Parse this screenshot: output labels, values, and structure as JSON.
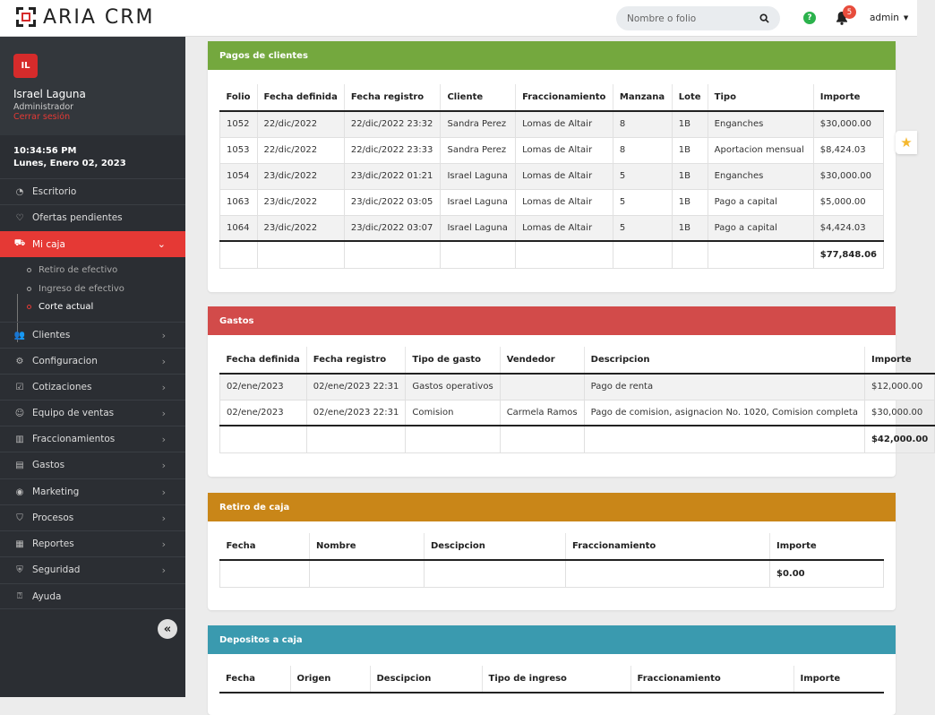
{
  "app": {
    "title": "ARIA CRM"
  },
  "search": {
    "placeholder": "Nombre o folio"
  },
  "header": {
    "notification_count": "5",
    "user": "admin"
  },
  "profile": {
    "initials": "IL",
    "name": "Israel Laguna",
    "role": "Administrador",
    "logout": "Cerrar sesión"
  },
  "clock": {
    "time": "10:34:56 PM",
    "date": "Lunes, Enero 02, 2023"
  },
  "nav": [
    {
      "label": "Escritorio",
      "icon": "dashboard-icon"
    },
    {
      "label": "Ofertas pendientes",
      "icon": "heart-icon"
    },
    {
      "label": "Mi caja",
      "icon": "cash-register-icon"
    },
    {
      "label": "Clientes",
      "icon": "users-icon"
    },
    {
      "label": "Configuracion",
      "icon": "gear-icon"
    },
    {
      "label": "Cotizaciones",
      "icon": "checkbox-icon"
    },
    {
      "label": "Equipo de ventas",
      "icon": "team-icon"
    },
    {
      "label": "Fraccionamientos",
      "icon": "map-icon"
    },
    {
      "label": "Gastos",
      "icon": "briefcase-icon"
    },
    {
      "label": "Marketing",
      "icon": "target-icon"
    },
    {
      "label": "Procesos",
      "icon": "shield-check-icon"
    },
    {
      "label": "Reportes",
      "icon": "chart-icon"
    },
    {
      "label": "Seguridad",
      "icon": "shield-icon"
    },
    {
      "label": "Ayuda",
      "icon": "help-icon"
    }
  ],
  "subnav": [
    {
      "label": "Retiro de efectivo"
    },
    {
      "label": "Ingreso de efectivo"
    },
    {
      "label": "Corte actual"
    }
  ],
  "pagos": {
    "title": "Pagos de clientes",
    "color": "#74a83e",
    "columns": [
      "Folio",
      "Fecha definida",
      "Fecha registro",
      "Cliente",
      "Fraccionamiento",
      "Manzana",
      "Lote",
      "Tipo",
      "Importe"
    ],
    "rows": [
      [
        "1052",
        "22/dic/2022",
        "22/dic/2022 23:32",
        "Sandra Perez",
        "Lomas de Altair",
        "8",
        "1B",
        "Enganches",
        "$30,000.00"
      ],
      [
        "1053",
        "22/dic/2022",
        "22/dic/2022 23:33",
        "Sandra Perez",
        "Lomas de Altair",
        "8",
        "1B",
        "Aportacion mensual",
        "$8,424.03"
      ],
      [
        "1054",
        "23/dic/2022",
        "23/dic/2022 01:21",
        "Israel Laguna",
        "Lomas de Altair",
        "5",
        "1B",
        "Enganches",
        "$30,000.00"
      ],
      [
        "1063",
        "23/dic/2022",
        "23/dic/2022 03:05",
        "Israel Laguna",
        "Lomas de Altair",
        "5",
        "1B",
        "Pago a capital",
        "$5,000.00"
      ],
      [
        "1064",
        "23/dic/2022",
        "23/dic/2022 03:07",
        "Israel Laguna",
        "Lomas de Altair",
        "5",
        "1B",
        "Pago a capital",
        "$4,424.03"
      ]
    ],
    "total": "$77,848.06"
  },
  "gastos": {
    "title": "Gastos",
    "color": "#d24b4a",
    "columns": [
      "Fecha definida",
      "Fecha registro",
      "Tipo de gasto",
      "Vendedor",
      "Descripcion",
      "Importe"
    ],
    "rows": [
      [
        "02/ene/2023",
        "02/ene/2023 22:31",
        "Gastos operativos",
        "",
        "Pago de renta",
        "$12,000.00"
      ],
      [
        "02/ene/2023",
        "02/ene/2023 22:31",
        "Comision",
        "Carmela Ramos",
        "Pago de comision, asignacion No. 1020, Comision completa",
        "$30,000.00"
      ]
    ],
    "total": "$42,000.00"
  },
  "retiro": {
    "title": "Retiro de caja",
    "color": "#c98618",
    "columns": [
      "Fecha",
      "Nombre",
      "Descipcion",
      "Fraccionamiento",
      "Importe"
    ],
    "total": "$0.00"
  },
  "depositos": {
    "title": "Depositos a caja",
    "color": "#3a9aaf",
    "columns": [
      "Fecha",
      "Origen",
      "Descipcion",
      "Tipo de ingreso",
      "Fraccionamiento",
      "Importe"
    ]
  }
}
